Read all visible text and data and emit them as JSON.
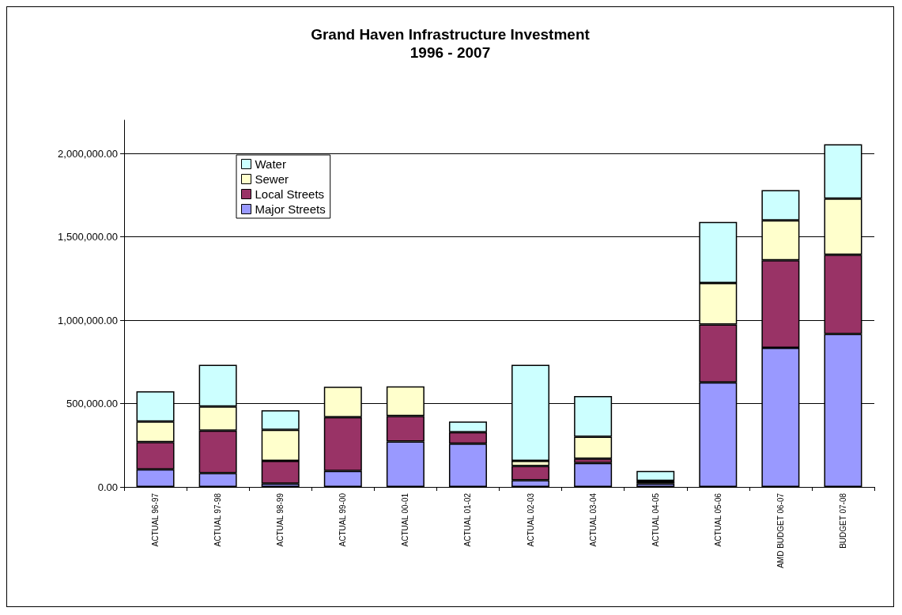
{
  "chart_data": {
    "type": "bar",
    "title": "Grand Haven Infrastructure Investment",
    "subtitle": "1996 - 2007",
    "categories": [
      "ACTUAL 96-97",
      "ACTUAL 97-98",
      "ACTUAL 98-99",
      "ACTUAL 99-00",
      "ACTUAL 00-01",
      "ACTUAL 01-02",
      "ACTUAL 02-03",
      "ACTUAL 03-04",
      "ACTUAL 04-05",
      "ACTUAL 05-06",
      "AMD BUDGET 06-07",
      "BUDGET 07-08"
    ],
    "stacked": true,
    "series": [
      {
        "name": "Major Streets",
        "color": "#9999ff",
        "values": [
          105000,
          83000,
          20000,
          96000,
          273000,
          260000,
          40000,
          143000,
          20000,
          627000,
          834000,
          918000
        ]
      },
      {
        "name": "Local Streets",
        "color": "#993366",
        "values": [
          164000,
          255000,
          136000,
          323000,
          152000,
          68000,
          86000,
          26000,
          14000,
          347000,
          526000,
          475000
        ]
      },
      {
        "name": "Sewer",
        "color": "#ffffcc",
        "values": [
          123000,
          145000,
          187000,
          182000,
          178000,
          null,
          30000,
          132000,
          3000,
          249000,
          239000,
          336000
        ]
      },
      {
        "name": "Water",
        "color": "#ccffff",
        "values": [
          182000,
          250000,
          117000,
          null,
          null,
          64000,
          577000,
          244000,
          59000,
          367000,
          181000,
          326000
        ]
      }
    ],
    "ylim": [
      0,
      2200000
    ],
    "yticks": [
      {
        "value": 0,
        "label": "0.00"
      },
      {
        "value": 500000,
        "label": "500,000.00"
      },
      {
        "value": 1000000,
        "label": "1,000,000.00"
      },
      {
        "value": 1500000,
        "label": "1,500,000.00"
      },
      {
        "value": 2000000,
        "label": "2,000,000.00"
      }
    ],
    "grid": "y",
    "legend": "top left"
  }
}
